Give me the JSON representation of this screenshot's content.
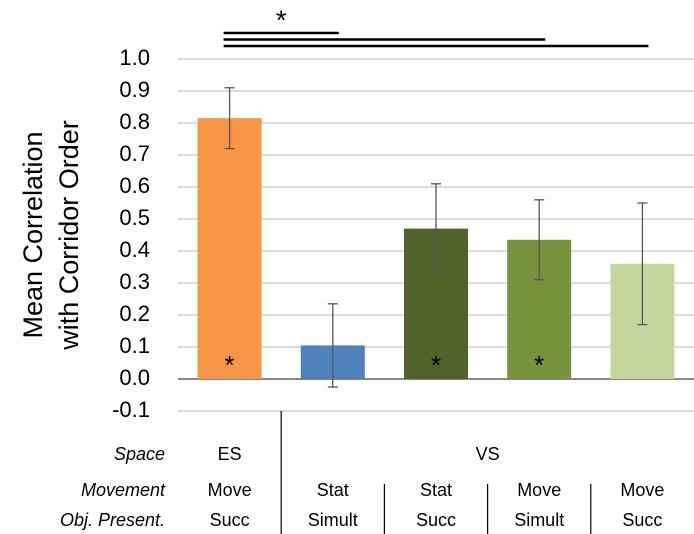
{
  "chart_data": {
    "type": "bar",
    "y_label_lines": [
      "Mean Correlation",
      "with Corridor Order"
    ],
    "row_labels": [
      "Space",
      "Movement",
      "Obj. Present."
    ],
    "space": [
      "ES",
      "VS",
      null,
      null,
      null
    ],
    "movement": [
      "Move",
      "Stat",
      "Stat",
      "Move",
      "Move"
    ],
    "obj_present": [
      "Succ",
      "Simult",
      "Succ",
      "Simult",
      "Succ"
    ],
    "values": [
      0.815,
      0.105,
      0.47,
      0.435,
      0.36
    ],
    "errors": [
      0.095,
      0.13,
      0.14,
      0.125,
      0.19
    ],
    "colors": [
      "#f79646",
      "#4f81bd",
      "#4f6228",
      "#77933c",
      "#c3d69b"
    ],
    "bar_markers": [
      "*",
      null,
      "*",
      "*",
      null
    ],
    "comparison_label": "*",
    "comparisons": [
      [
        0,
        1
      ],
      [
        0,
        3
      ],
      [
        0,
        4
      ]
    ],
    "ylim": [
      -0.1,
      1.0
    ],
    "yticks": [
      -0.1,
      {
        "value": 0,
        "label": "0.0"
      },
      0.1,
      0.2,
      0.3,
      0.4,
      0.5,
      0.6,
      0.7,
      0.8,
      0.9,
      {
        "value": 1,
        "label": "1.0"
      }
    ],
    "grid": true
  }
}
